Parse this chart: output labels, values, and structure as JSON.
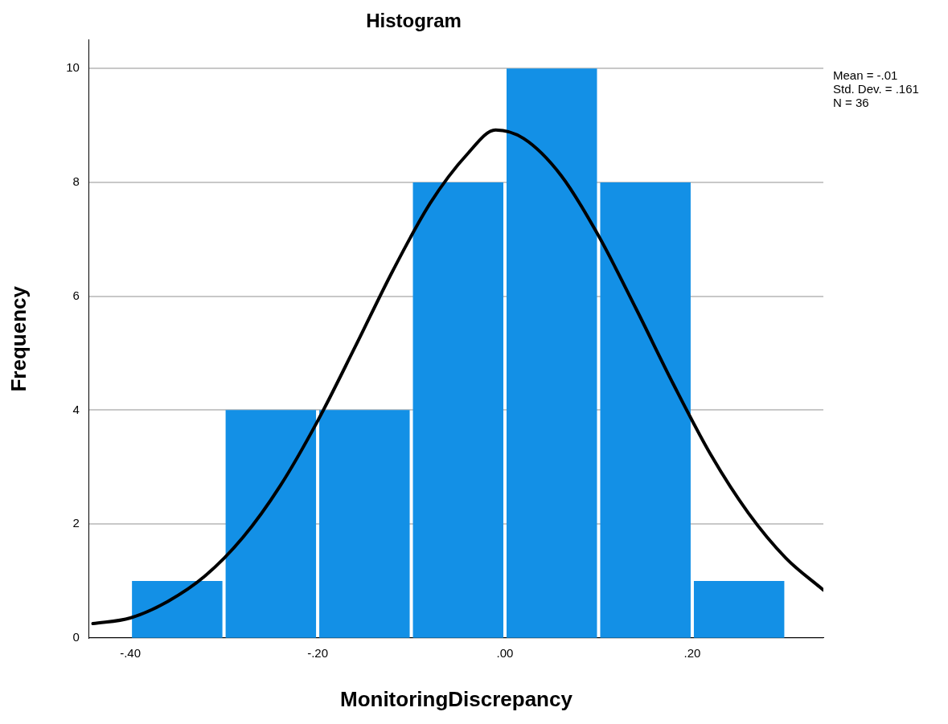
{
  "chart_data": {
    "type": "histogram",
    "title": "Histogram",
    "xlabel": "MonitoringDiscrepancy",
    "ylabel": "Frequency",
    "series": [
      {
        "color": "#1390e6",
        "bins": [
          -0.4,
          -0.3,
          -0.2,
          -0.1,
          0,
          0.1,
          0.2,
          0.3
        ],
        "values": [
          1,
          4,
          4,
          8,
          10,
          8,
          1
        ]
      },
      {
        "type": "line",
        "color": "#000000",
        "x": [
          -0.44,
          -0.4,
          -0.36,
          -0.32,
          -0.28,
          -0.24,
          -0.2,
          -0.16,
          -0.12,
          -0.08,
          -0.04,
          -0.01,
          0.02,
          0.06,
          0.1,
          0.14,
          0.18,
          0.22,
          0.26,
          0.3,
          0.34
        ],
        "values": [
          0.25,
          0.35,
          0.64,
          1.09,
          1.76,
          2.67,
          3.81,
          5.11,
          6.44,
          7.63,
          8.5,
          8.92,
          8.77,
          8.12,
          7.06,
          5.78,
          4.45,
          3.21,
          2.19,
          1.4,
          0.84
        ]
      }
    ],
    "xlim": [
      -0.444,
      0.34
    ],
    "xticks": [
      {
        "value": -0.4,
        "label": "-.40"
      },
      {
        "value": -0.2,
        "label": "-.20"
      },
      {
        "value": 0,
        "label": ".00"
      },
      {
        "value": 0.2,
        "label": ".20"
      }
    ],
    "ylim": [
      0,
      10.5
    ],
    "yticks": [
      0,
      2,
      4,
      6,
      8,
      10
    ],
    "grid": "y",
    "legend": false,
    "marker": "none",
    "annotations": [
      "Mean = -.01",
      "Std. Dev. = .161",
      "N = 36"
    ]
  }
}
